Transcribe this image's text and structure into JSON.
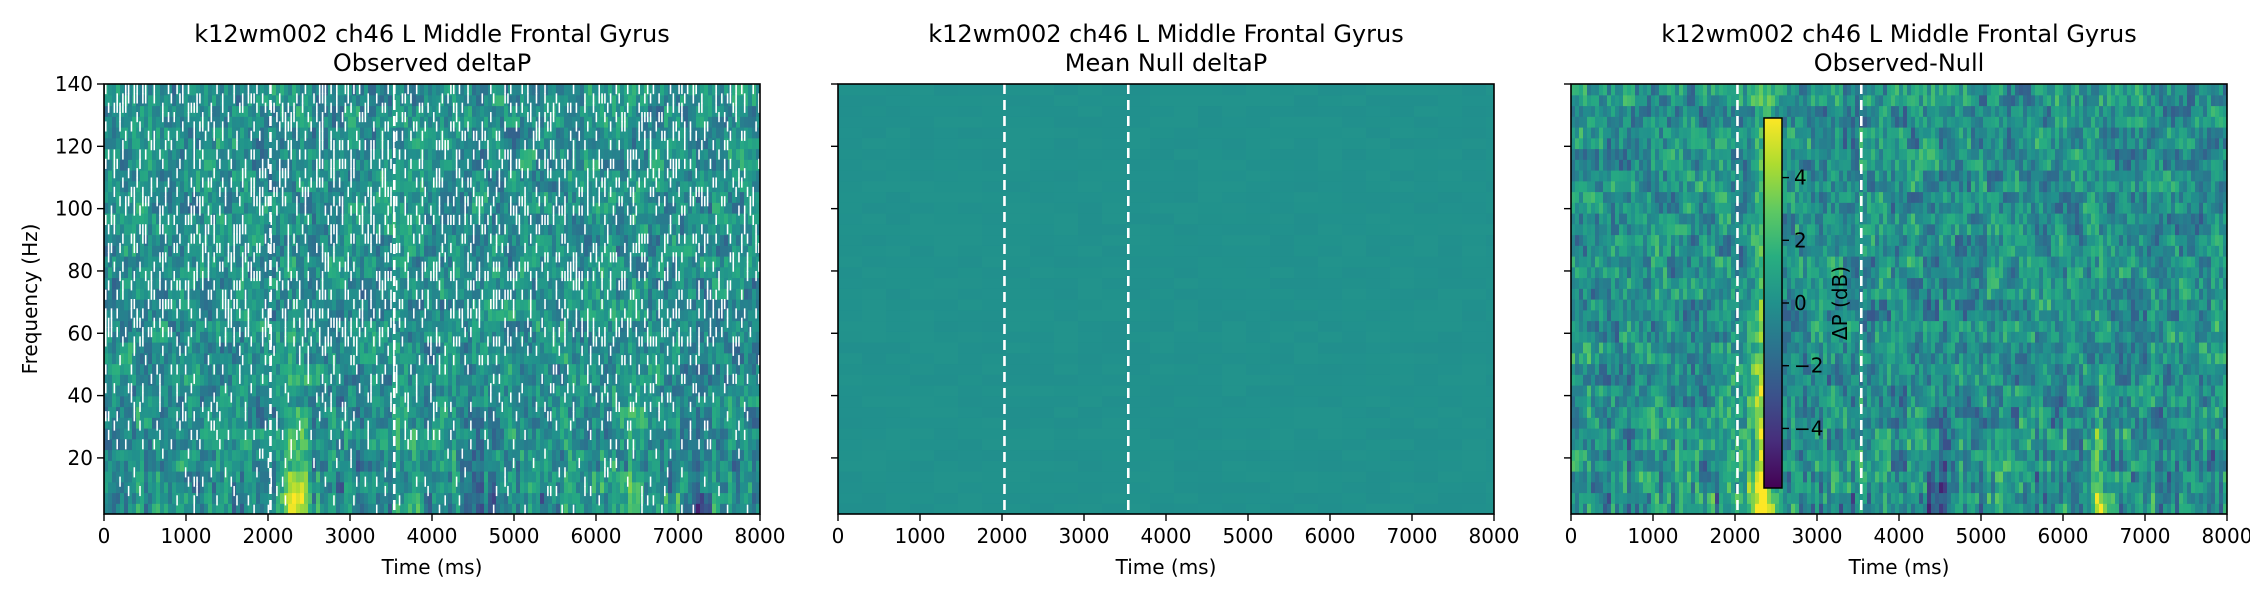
{
  "chart_data": [
    {
      "type": "heatmap",
      "title": "k12wm002 ch46 L Middle Frontal Gyrus\nObserved deltaP",
      "xlabel": "Time (ms)",
      "ylabel": "Frequency (Hz)",
      "xlim": [
        0,
        8000
      ],
      "ylim": [
        2,
        140
      ],
      "xticks": [
        0,
        1000,
        2000,
        3000,
        4000,
        5000,
        6000,
        7000,
        8000
      ],
      "yticks": [
        20,
        40,
        60,
        80,
        100,
        120,
        140
      ],
      "vlines": [
        2030,
        3540
      ],
      "texture": "observed"
    },
    {
      "type": "heatmap",
      "title": "k12wm002 ch46 L Middle Frontal Gyrus\nMean Null deltaP",
      "xlabel": "Time (ms)",
      "ylabel": "",
      "xlim": [
        0,
        8000
      ],
      "ylim": [
        2,
        140
      ],
      "xticks": [
        0,
        1000,
        2000,
        3000,
        4000,
        5000,
        6000,
        7000,
        8000
      ],
      "yticks": [
        20,
        40,
        60,
        80,
        100,
        120,
        140
      ],
      "vlines": [
        2030,
        3540
      ],
      "texture": "null"
    },
    {
      "type": "heatmap",
      "title": "k12wm002 ch46 L Middle Frontal Gyrus\nObserved-Null",
      "xlabel": "Time (ms)",
      "ylabel": "",
      "xlim": [
        0,
        8000
      ],
      "ylim": [
        2,
        140
      ],
      "xticks": [
        0,
        1000,
        2000,
        3000,
        4000,
        5000,
        6000,
        7000,
        8000
      ],
      "yticks": [
        20,
        40,
        60,
        80,
        100,
        120,
        140
      ],
      "vlines": [
        2030,
        3540
      ],
      "texture": "diff",
      "colorbar": {
        "label": "ΔP (dB)",
        "ticks": [
          -4,
          -2,
          0,
          2,
          4
        ],
        "range": [
          -5.9,
          5.9
        ],
        "colormap": "viridis"
      }
    }
  ],
  "colors": {
    "viridis_low": "#440154",
    "viridis_mid": "#21918c",
    "viridis_high": "#fde725",
    "vline": "#ffffff"
  }
}
